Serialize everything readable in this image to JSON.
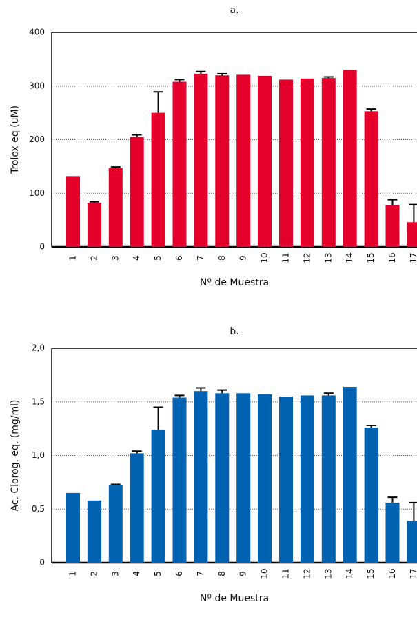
{
  "chart_data": [
    {
      "type": "bar",
      "title": "a.",
      "xlabel": "Nº de Muestra",
      "ylabel": "Trolox eq (uM)",
      "categories": [
        "1",
        "2",
        "3",
        "4",
        "5",
        "6",
        "7",
        "8",
        "9",
        "10",
        "11",
        "12",
        "13",
        "14",
        "15",
        "16",
        "17"
      ],
      "values": [
        132,
        82,
        147,
        205,
        250,
        308,
        323,
        320,
        321,
        319,
        312,
        314,
        315,
        330,
        253,
        78,
        46
      ],
      "errors": [
        null,
        2,
        2,
        4,
        39,
        4,
        4,
        3,
        null,
        null,
        null,
        null,
        2,
        null,
        4,
        10,
        33
      ],
      "color": "#e4002b",
      "ylim": [
        0,
        400
      ],
      "yticks": [
        0,
        100,
        200,
        300,
        400
      ],
      "grid": true
    },
    {
      "type": "bar",
      "title": "b.",
      "xlabel": "Nº de Muestra",
      "ylabel": "Ac. Clorog. eq. (mg/ml)",
      "categories": [
        "1",
        "2",
        "3",
        "4",
        "5",
        "6",
        "7",
        "8",
        "9",
        "10",
        "11",
        "12",
        "13",
        "14",
        "15",
        "16",
        "17"
      ],
      "values": [
        0.65,
        0.58,
        0.72,
        1.02,
        1.24,
        1.54,
        1.6,
        1.58,
        1.58,
        1.57,
        1.55,
        1.56,
        1.56,
        1.64,
        1.26,
        0.56,
        0.39
      ],
      "errors": [
        null,
        null,
        0.01,
        0.02,
        0.21,
        0.02,
        0.03,
        0.03,
        null,
        null,
        null,
        null,
        0.02,
        null,
        0.02,
        0.05,
        0.17
      ],
      "color": "#0062b0",
      "ylim": [
        0,
        2
      ],
      "yticks": [
        0,
        {
          "value": 0.5,
          "label": "0,5"
        },
        {
          "value": 1,
          "label": "1,0"
        },
        {
          "value": 1.5,
          "label": "1,5"
        },
        {
          "value": 2,
          "label": "2,0"
        }
      ],
      "grid": true
    }
  ]
}
